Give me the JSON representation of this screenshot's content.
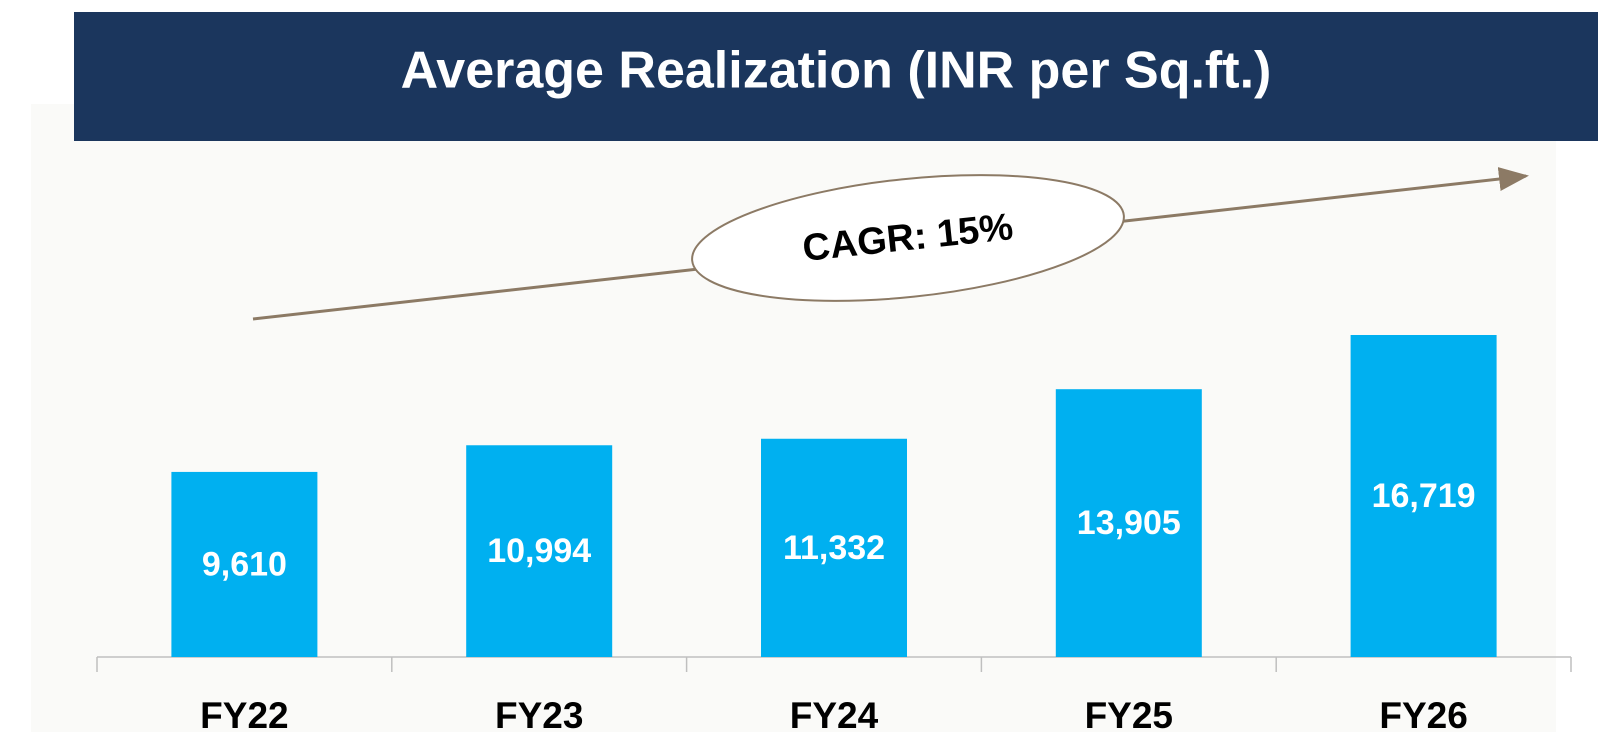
{
  "chart_data": {
    "type": "bar",
    "title": "Average Realization (INR per Sq.ft.)",
    "annotation": "CAGR: 15%",
    "categories": [
      "FY22",
      "FY23",
      "FY24",
      "FY25",
      "FY26"
    ],
    "values": [
      9610,
      10994,
      11332,
      13905,
      16719
    ],
    "value_labels": [
      "9,610",
      "10,994",
      "11,332",
      "13,905",
      "16,719"
    ],
    "color": "#00b0f0"
  }
}
